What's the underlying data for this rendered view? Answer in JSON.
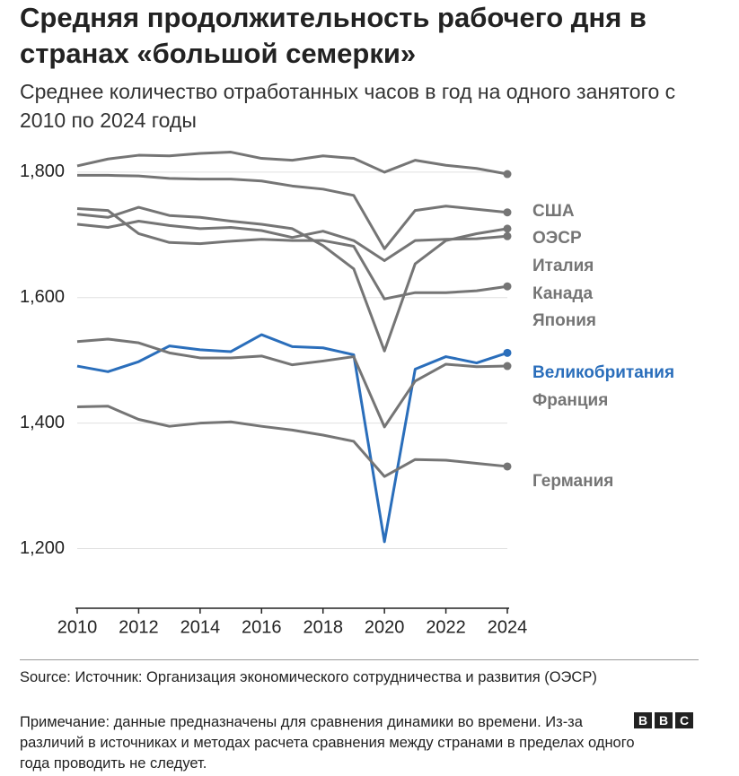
{
  "chart_data": {
    "type": "line",
    "title": "Средняя продолжительность рабочего дня в странах «большой семерки»",
    "subtitle": "Среднее количество отработанных часов в год на одного занятого с 2010 по 2024 годы",
    "x": [
      2010,
      2011,
      2012,
      2013,
      2014,
      2015,
      2016,
      2017,
      2018,
      2019,
      2020,
      2021,
      2022,
      2023,
      2024
    ],
    "xlim": [
      2010,
      2024
    ],
    "xticks": [
      2010,
      2012,
      2014,
      2016,
      2018,
      2020,
      2022,
      2024
    ],
    "ylim": [
      1105,
      1900
    ],
    "yticks": [
      {
        "value": 1200,
        "label": "1,200"
      },
      {
        "value": 1400,
        "label": "1,400"
      },
      {
        "value": 1600,
        "label": "1,600"
      },
      {
        "value": 1800,
        "label": "1,800"
      }
    ],
    "grid": true,
    "series": [
      {
        "name": "США",
        "color": "#757575",
        "values": [
          1810,
          1821,
          1827,
          1826,
          1830,
          1832,
          1822,
          1819,
          1826,
          1822,
          1800,
          1819,
          1811,
          1806,
          1797
        ]
      },
      {
        "name": "ОЭСР",
        "color": "#757575",
        "values": [
          1795,
          1795,
          1794,
          1790,
          1789,
          1789,
          1786,
          1778,
          1773,
          1763,
          1678,
          1739,
          1746,
          1741,
          1736
        ]
      },
      {
        "name": "Италия",
        "color": "#757575",
        "values": [
          1733,
          1728,
          1744,
          1731,
          1728,
          1722,
          1717,
          1710,
          1683,
          1646,
          1515,
          1654,
          1691,
          1702,
          1710
        ]
      },
      {
        "name": "Канада",
        "color": "#757575",
        "values": [
          1717,
          1712,
          1722,
          1715,
          1710,
          1712,
          1707,
          1696,
          1706,
          1691,
          1659,
          1691,
          1693,
          1694,
          1698
        ]
      },
      {
        "name": "Япония",
        "color": "#757575",
        "values": [
          1742,
          1739,
          1702,
          1688,
          1686,
          1690,
          1693,
          1691,
          1691,
          1682,
          1598,
          1608,
          1608,
          1611,
          1618
        ]
      },
      {
        "name": "Великобритания",
        "color": "#2a6ebb",
        "values": [
          1491,
          1482,
          1498,
          1523,
          1517,
          1514,
          1541,
          1522,
          1520,
          1509,
          1211,
          1486,
          1506,
          1496,
          1512
        ]
      },
      {
        "name": "Франция",
        "color": "#757575",
        "values": [
          1530,
          1534,
          1528,
          1512,
          1504,
          1504,
          1507,
          1493,
          1499,
          1506,
          1394,
          1467,
          1494,
          1490,
          1491
        ]
      },
      {
        "name": "Германия",
        "color": "#757575",
        "values": [
          1426,
          1427,
          1406,
          1395,
          1400,
          1402,
          1395,
          1389,
          1381,
          1371,
          1315,
          1342,
          1341,
          1336,
          1331
        ]
      }
    ],
    "source": "Source: Источник: Организация экономического сотрудничества и развития (ОЭСР)",
    "note": "Примечание: данные предназначены для сравнения динамики во времени. Из-за различий в источниках и методах расчета сравнения между странами в пределах одного года проводить не следует.",
    "logo": [
      "B",
      "B",
      "C"
    ]
  }
}
